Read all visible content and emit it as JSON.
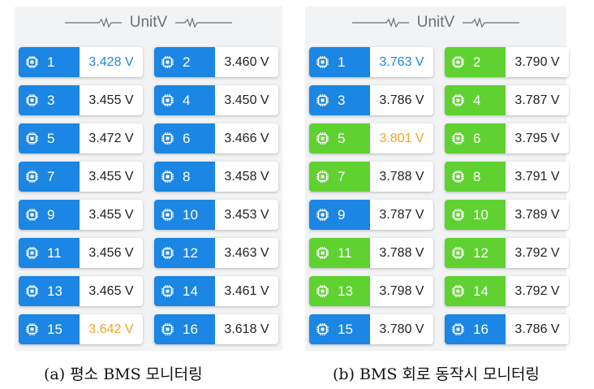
{
  "panel_a": {
    "header": "UnitV",
    "caption": "(a) 평소 BMS 모니터링",
    "cells": [
      {
        "num": "1",
        "value": "3.428 V",
        "tag_color": "blue",
        "value_color": "blue"
      },
      {
        "num": "2",
        "value": "3.460 V",
        "tag_color": "blue",
        "value_color": "normal"
      },
      {
        "num": "3",
        "value": "3.455 V",
        "tag_color": "blue",
        "value_color": "normal"
      },
      {
        "num": "4",
        "value": "3.450 V",
        "tag_color": "blue",
        "value_color": "normal"
      },
      {
        "num": "5",
        "value": "3.472 V",
        "tag_color": "blue",
        "value_color": "normal"
      },
      {
        "num": "6",
        "value": "3.466 V",
        "tag_color": "blue",
        "value_color": "normal"
      },
      {
        "num": "7",
        "value": "3.455 V",
        "tag_color": "blue",
        "value_color": "normal"
      },
      {
        "num": "8",
        "value": "3.458 V",
        "tag_color": "blue",
        "value_color": "normal"
      },
      {
        "num": "9",
        "value": "3.455 V",
        "tag_color": "blue",
        "value_color": "normal"
      },
      {
        "num": "10",
        "value": "3.453 V",
        "tag_color": "blue",
        "value_color": "normal"
      },
      {
        "num": "11",
        "value": "3.456 V",
        "tag_color": "blue",
        "value_color": "normal"
      },
      {
        "num": "12",
        "value": "3.463 V",
        "tag_color": "blue",
        "value_color": "normal"
      },
      {
        "num": "13",
        "value": "3.465 V",
        "tag_color": "blue",
        "value_color": "normal"
      },
      {
        "num": "14",
        "value": "3.461 V",
        "tag_color": "blue",
        "value_color": "normal"
      },
      {
        "num": "15",
        "value": "3.642 V",
        "tag_color": "blue",
        "value_color": "orange"
      },
      {
        "num": "16",
        "value": "3.618 V",
        "tag_color": "blue",
        "value_color": "normal"
      }
    ]
  },
  "panel_b": {
    "header": "UnitV",
    "caption": "(b) BMS 회로 동작시 모니터링",
    "cells": [
      {
        "num": "1",
        "value": "3.763 V",
        "tag_color": "blue",
        "value_color": "blue"
      },
      {
        "num": "2",
        "value": "3.790 V",
        "tag_color": "green",
        "value_color": "normal"
      },
      {
        "num": "3",
        "value": "3.786 V",
        "tag_color": "blue",
        "value_color": "normal"
      },
      {
        "num": "4",
        "value": "3.787 V",
        "tag_color": "green",
        "value_color": "normal"
      },
      {
        "num": "5",
        "value": "3.801 V",
        "tag_color": "green",
        "value_color": "orange"
      },
      {
        "num": "6",
        "value": "3.795 V",
        "tag_color": "green",
        "value_color": "normal"
      },
      {
        "num": "7",
        "value": "3.788 V",
        "tag_color": "green",
        "value_color": "normal"
      },
      {
        "num": "8",
        "value": "3.791 V",
        "tag_color": "green",
        "value_color": "normal"
      },
      {
        "num": "9",
        "value": "3.787 V",
        "tag_color": "blue",
        "value_color": "normal"
      },
      {
        "num": "10",
        "value": "3.789 V",
        "tag_color": "green",
        "value_color": "normal"
      },
      {
        "num": "11",
        "value": "3.788 V",
        "tag_color": "green",
        "value_color": "normal"
      },
      {
        "num": "12",
        "value": "3.792 V",
        "tag_color": "green",
        "value_color": "normal"
      },
      {
        "num": "13",
        "value": "3.798 V",
        "tag_color": "green",
        "value_color": "normal"
      },
      {
        "num": "14",
        "value": "3.792 V",
        "tag_color": "green",
        "value_color": "normal"
      },
      {
        "num": "15",
        "value": "3.780 V",
        "tag_color": "blue",
        "value_color": "normal"
      },
      {
        "num": "16",
        "value": "3.786 V",
        "tag_color": "blue",
        "value_color": "normal"
      }
    ]
  },
  "colors": {
    "blue": "#1b86e3",
    "green": "#5fd130",
    "orange": "#f2a323"
  },
  "icons": {
    "header": "pulse-line-icon",
    "cell": "chip-icon"
  }
}
